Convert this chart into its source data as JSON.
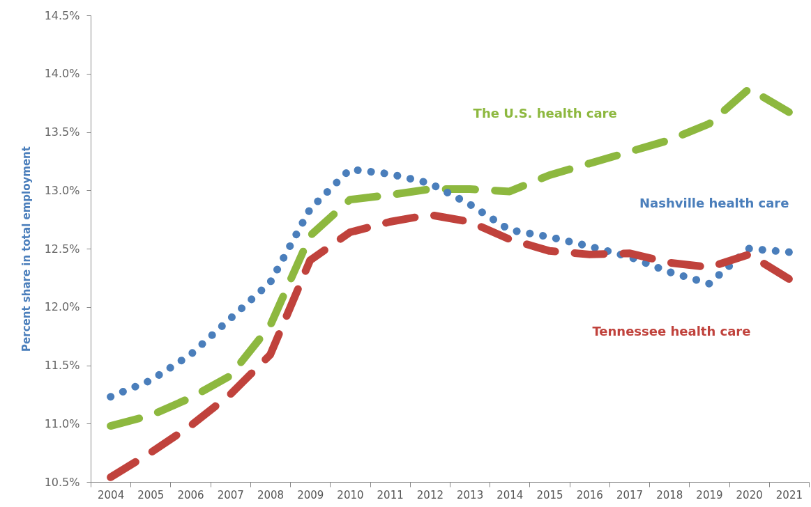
{
  "chart_data": {
    "type": "line",
    "ylabel": "Percent share in total employment",
    "categories": [
      "2004",
      "2005",
      "2006",
      "2007",
      "2008",
      "2009",
      "2010",
      "2011",
      "2012",
      "2013",
      "2014",
      "2015",
      "2016",
      "2017",
      "2018",
      "2019",
      "2020",
      "2021"
    ],
    "ylim": [
      10.5,
      14.5
    ],
    "yticks": [
      {
        "value": 10.5,
        "label": "10.5%"
      },
      {
        "value": 11,
        "label": "11.0%"
      },
      {
        "value": 11.5,
        "label": "11.5%"
      },
      {
        "value": 12,
        "label": "12.0%"
      },
      {
        "value": 12.5,
        "label": "12.5%"
      },
      {
        "value": 13,
        "label": "13.0%"
      },
      {
        "value": 13.5,
        "label": "13.5%"
      },
      {
        "value": 14,
        "label": "14.0%"
      },
      {
        "value": 14.5,
        "label": "14.5%"
      }
    ],
    "legend": false,
    "series": [
      {
        "name": "The U.S. health care",
        "color": "#8db83f",
        "line_style": "dashed",
        "values": [
          10.98,
          11.07,
          11.22,
          11.41,
          11.84,
          12.61,
          12.92,
          12.96,
          13.01,
          13.01,
          12.99,
          13.13,
          13.23,
          13.33,
          13.43,
          13.57,
          13.87,
          13.67
        ]
      },
      {
        "name": "Nashville health care",
        "color": "#4a7ebb",
        "line_style": "dotted",
        "values": [
          11.23,
          11.37,
          11.59,
          11.9,
          12.21,
          12.84,
          13.18,
          13.14,
          13.06,
          12.88,
          12.66,
          12.6,
          12.52,
          12.43,
          12.3,
          12.2,
          12.5,
          12.47
        ]
      },
      {
        "name": "Tennessee health care",
        "color": "#c0423c",
        "line_style": "dashed",
        "values": [
          10.54,
          10.75,
          10.98,
          11.25,
          11.59,
          12.4,
          12.64,
          12.73,
          12.79,
          12.73,
          12.58,
          12.48,
          12.45,
          12.46,
          12.38,
          12.34,
          12.45,
          12.24
        ]
      }
    ]
  }
}
